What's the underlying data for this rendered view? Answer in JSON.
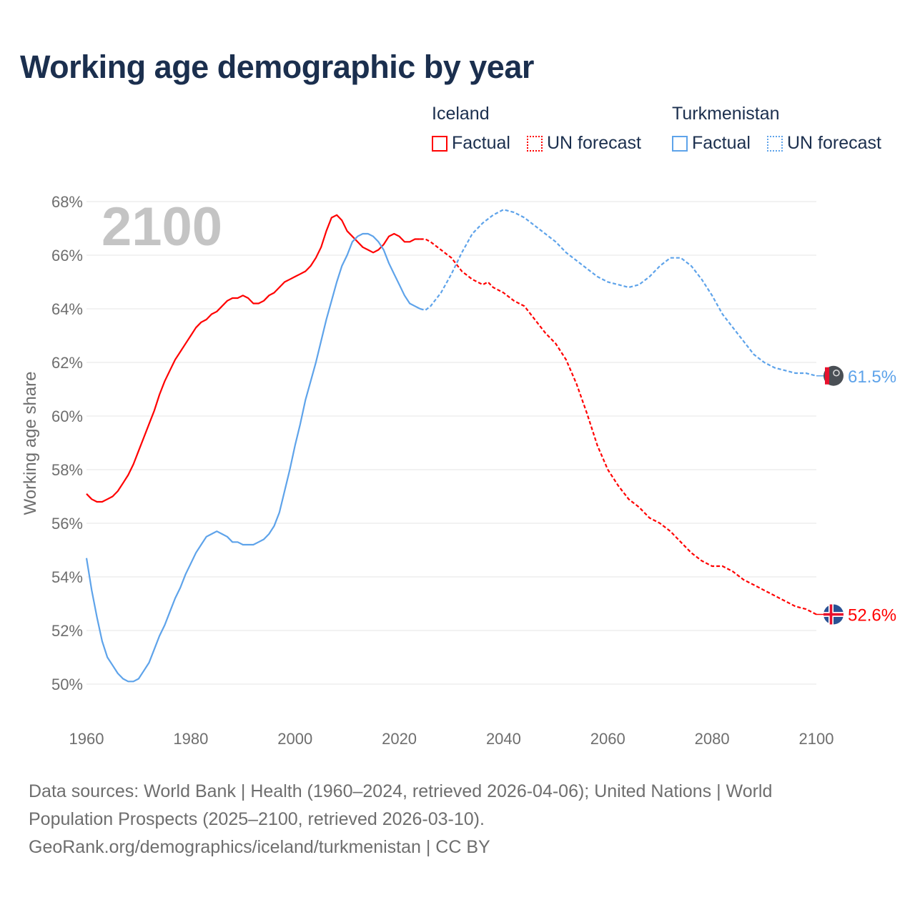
{
  "title": "Working age demographic by year",
  "legend": {
    "groups": [
      {
        "name": "Iceland",
        "factual": "Factual",
        "forecast": "UN forecast",
        "color": "#ff0000"
      },
      {
        "name": "Turkmenistan",
        "factual": "Factual",
        "forecast": "UN forecast",
        "color": "#5ea3ea"
      }
    ]
  },
  "footer": {
    "line1": "Data sources: World Bank | Health (1960–2024, retrieved 2026-04-06); United Nations | World",
    "line2": "Population Prospects (2025–2100, retrieved 2026-03-10).",
    "line3": "GeoRank.org/demographics/iceland/turkmenistan | CC BY"
  },
  "chart_data": {
    "type": "line",
    "title": "Working age demographic by year",
    "ylabel": "Working age share",
    "xlabel": "",
    "year_watermark": "2100",
    "xlim": [
      1960,
      2100
    ],
    "ylim": [
      50,
      68
    ],
    "xticks": [
      "1960",
      "1980",
      "2000",
      "2020",
      "2040",
      "2060",
      "2080",
      "2100"
    ],
    "yticks": [
      "50%",
      "52%",
      "54%",
      "56%",
      "58%",
      "60%",
      "62%",
      "64%",
      "66%",
      "68%"
    ],
    "grid": true,
    "series": [
      {
        "name": "Iceland",
        "color": "#ff0000",
        "end_label": "52.6%",
        "factual": [
          [
            1960,
            57.1
          ],
          [
            1961,
            56.9
          ],
          [
            1962,
            56.8
          ],
          [
            1963,
            56.8
          ],
          [
            1964,
            56.9
          ],
          [
            1965,
            57.0
          ],
          [
            1966,
            57.2
          ],
          [
            1967,
            57.5
          ],
          [
            1968,
            57.8
          ],
          [
            1969,
            58.2
          ],
          [
            1970,
            58.7
          ],
          [
            1971,
            59.2
          ],
          [
            1972,
            59.7
          ],
          [
            1973,
            60.2
          ],
          [
            1974,
            60.8
          ],
          [
            1975,
            61.3
          ],
          [
            1976,
            61.7
          ],
          [
            1977,
            62.1
          ],
          [
            1978,
            62.4
          ],
          [
            1979,
            62.7
          ],
          [
            1980,
            63.0
          ],
          [
            1981,
            63.3
          ],
          [
            1982,
            63.5
          ],
          [
            1983,
            63.6
          ],
          [
            1984,
            63.8
          ],
          [
            1985,
            63.9
          ],
          [
            1986,
            64.1
          ],
          [
            1987,
            64.3
          ],
          [
            1988,
            64.4
          ],
          [
            1989,
            64.4
          ],
          [
            1990,
            64.5
          ],
          [
            1991,
            64.4
          ],
          [
            1992,
            64.2
          ],
          [
            1993,
            64.2
          ],
          [
            1994,
            64.3
          ],
          [
            1995,
            64.5
          ],
          [
            1996,
            64.6
          ],
          [
            1997,
            64.8
          ],
          [
            1998,
            65.0
          ],
          [
            1999,
            65.1
          ],
          [
            2000,
            65.2
          ],
          [
            2001,
            65.3
          ],
          [
            2002,
            65.4
          ],
          [
            2003,
            65.6
          ],
          [
            2004,
            65.9
          ],
          [
            2005,
            66.3
          ],
          [
            2006,
            66.9
          ],
          [
            2007,
            67.4
          ],
          [
            2008,
            67.5
          ],
          [
            2009,
            67.3
          ],
          [
            2010,
            66.9
          ],
          [
            2011,
            66.7
          ],
          [
            2012,
            66.5
          ],
          [
            2013,
            66.3
          ],
          [
            2014,
            66.2
          ],
          [
            2015,
            66.1
          ],
          [
            2016,
            66.2
          ],
          [
            2017,
            66.4
          ],
          [
            2018,
            66.7
          ],
          [
            2019,
            66.8
          ],
          [
            2020,
            66.7
          ],
          [
            2021,
            66.5
          ],
          [
            2022,
            66.5
          ],
          [
            2023,
            66.6
          ],
          [
            2024,
            66.6
          ]
        ],
        "forecast": [
          [
            2024,
            66.6
          ],
          [
            2025,
            66.6
          ],
          [
            2026,
            66.5
          ],
          [
            2028,
            66.2
          ],
          [
            2030,
            65.9
          ],
          [
            2032,
            65.4
          ],
          [
            2034,
            65.1
          ],
          [
            2036,
            64.9
          ],
          [
            2037,
            65.0
          ],
          [
            2038,
            64.8
          ],
          [
            2040,
            64.6
          ],
          [
            2042,
            64.3
          ],
          [
            2044,
            64.1
          ],
          [
            2046,
            63.6
          ],
          [
            2048,
            63.1
          ],
          [
            2050,
            62.7
          ],
          [
            2052,
            62.1
          ],
          [
            2054,
            61.2
          ],
          [
            2056,
            60.1
          ],
          [
            2058,
            58.9
          ],
          [
            2060,
            58.0
          ],
          [
            2062,
            57.4
          ],
          [
            2064,
            56.9
          ],
          [
            2066,
            56.6
          ],
          [
            2068,
            56.2
          ],
          [
            2070,
            56.0
          ],
          [
            2072,
            55.7
          ],
          [
            2074,
            55.3
          ],
          [
            2076,
            54.9
          ],
          [
            2078,
            54.6
          ],
          [
            2080,
            54.4
          ],
          [
            2082,
            54.4
          ],
          [
            2084,
            54.2
          ],
          [
            2086,
            53.9
          ],
          [
            2088,
            53.7
          ],
          [
            2090,
            53.5
          ],
          [
            2092,
            53.3
          ],
          [
            2094,
            53.1
          ],
          [
            2096,
            52.9
          ],
          [
            2098,
            52.8
          ],
          [
            2100,
            52.6
          ]
        ]
      },
      {
        "name": "Turkmenistan",
        "color": "#5ea3ea",
        "end_label": "61.5%",
        "factual": [
          [
            1960,
            54.7
          ],
          [
            1961,
            53.5
          ],
          [
            1962,
            52.5
          ],
          [
            1963,
            51.6
          ],
          [
            1964,
            51.0
          ],
          [
            1965,
            50.7
          ],
          [
            1966,
            50.4
          ],
          [
            1967,
            50.2
          ],
          [
            1968,
            50.1
          ],
          [
            1969,
            50.1
          ],
          [
            1970,
            50.2
          ],
          [
            1971,
            50.5
          ],
          [
            1972,
            50.8
          ],
          [
            1973,
            51.3
          ],
          [
            1974,
            51.8
          ],
          [
            1975,
            52.2
          ],
          [
            1976,
            52.7
          ],
          [
            1977,
            53.2
          ],
          [
            1978,
            53.6
          ],
          [
            1979,
            54.1
          ],
          [
            1980,
            54.5
          ],
          [
            1981,
            54.9
          ],
          [
            1982,
            55.2
          ],
          [
            1983,
            55.5
          ],
          [
            1984,
            55.6
          ],
          [
            1985,
            55.7
          ],
          [
            1986,
            55.6
          ],
          [
            1987,
            55.5
          ],
          [
            1988,
            55.3
          ],
          [
            1989,
            55.3
          ],
          [
            1990,
            55.2
          ],
          [
            1991,
            55.2
          ],
          [
            1992,
            55.2
          ],
          [
            1993,
            55.3
          ],
          [
            1994,
            55.4
          ],
          [
            1995,
            55.6
          ],
          [
            1996,
            55.9
          ],
          [
            1997,
            56.4
          ],
          [
            1998,
            57.2
          ],
          [
            1999,
            58.0
          ],
          [
            2000,
            58.9
          ],
          [
            2001,
            59.7
          ],
          [
            2002,
            60.6
          ],
          [
            2003,
            61.3
          ],
          [
            2004,
            62.0
          ],
          [
            2005,
            62.8
          ],
          [
            2006,
            63.6
          ],
          [
            2007,
            64.3
          ],
          [
            2008,
            65.0
          ],
          [
            2009,
            65.6
          ],
          [
            2010,
            66.0
          ],
          [
            2011,
            66.5
          ],
          [
            2012,
            66.7
          ],
          [
            2013,
            66.8
          ],
          [
            2014,
            66.8
          ],
          [
            2015,
            66.7
          ],
          [
            2016,
            66.5
          ],
          [
            2017,
            66.2
          ],
          [
            2018,
            65.7
          ],
          [
            2019,
            65.3
          ],
          [
            2020,
            64.9
          ],
          [
            2021,
            64.5
          ],
          [
            2022,
            64.2
          ],
          [
            2023,
            64.1
          ],
          [
            2024,
            64.0
          ]
        ],
        "forecast": [
          [
            2024,
            64.0
          ],
          [
            2025,
            63.95
          ],
          [
            2026,
            64.1
          ],
          [
            2028,
            64.6
          ],
          [
            2030,
            65.3
          ],
          [
            2032,
            66.1
          ],
          [
            2034,
            66.8
          ],
          [
            2036,
            67.2
          ],
          [
            2038,
            67.5
          ],
          [
            2040,
            67.7
          ],
          [
            2042,
            67.6
          ],
          [
            2044,
            67.4
          ],
          [
            2046,
            67.1
          ],
          [
            2048,
            66.8
          ],
          [
            2050,
            66.5
          ],
          [
            2052,
            66.1
          ],
          [
            2054,
            65.8
          ],
          [
            2056,
            65.5
          ],
          [
            2058,
            65.2
          ],
          [
            2060,
            65.0
          ],
          [
            2062,
            64.9
          ],
          [
            2064,
            64.8
          ],
          [
            2066,
            64.9
          ],
          [
            2068,
            65.2
          ],
          [
            2070,
            65.6
          ],
          [
            2072,
            65.9
          ],
          [
            2074,
            65.9
          ],
          [
            2076,
            65.6
          ],
          [
            2078,
            65.1
          ],
          [
            2080,
            64.5
          ],
          [
            2082,
            63.8
          ],
          [
            2084,
            63.3
          ],
          [
            2086,
            62.8
          ],
          [
            2088,
            62.3
          ],
          [
            2090,
            62.0
          ],
          [
            2092,
            61.8
          ],
          [
            2094,
            61.7
          ],
          [
            2096,
            61.6
          ],
          [
            2098,
            61.6
          ],
          [
            2100,
            61.5
          ]
        ]
      }
    ]
  }
}
